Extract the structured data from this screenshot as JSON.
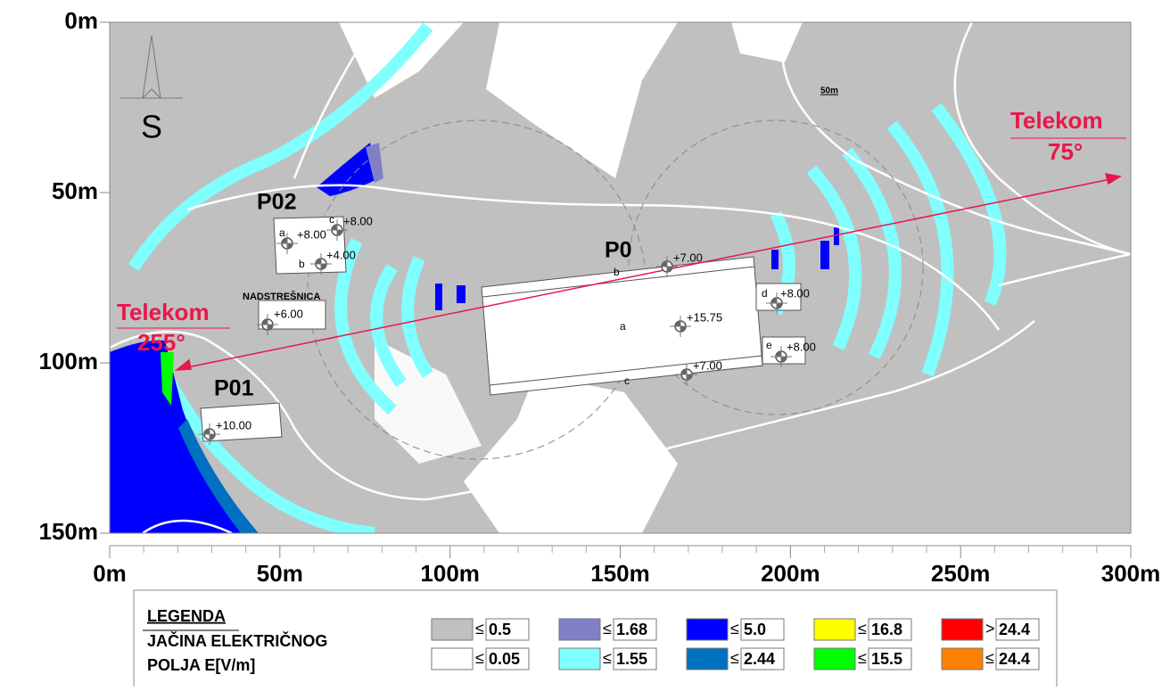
{
  "axes": {
    "x_labels": [
      "0m",
      "50m",
      "100m",
      "150m",
      "200m",
      "250m",
      "300m"
    ],
    "y_labels": [
      "0m",
      "50m",
      "100m",
      "150m"
    ]
  },
  "compass": "S",
  "scale_label": "50m",
  "telekom_left": {
    "name": "Telekom",
    "angle": "255°"
  },
  "telekom_right": {
    "name": "Telekom",
    "angle": "75°"
  },
  "buildings": [
    {
      "name": "P02",
      "points": [
        {
          "letter": "a",
          "elevation": "+8.00"
        },
        {
          "letter": "c",
          "elevation": "+8.00"
        },
        {
          "letter": "b",
          "elevation": "+4.00"
        }
      ]
    },
    {
      "name": "NADSTREŠNICA",
      "points": [
        {
          "elevation": "+6.00"
        }
      ]
    },
    {
      "name": "P01",
      "points": [
        {
          "elevation": "+10.00"
        }
      ]
    },
    {
      "name": "P0",
      "points": [
        {
          "letter": "b",
          "elevation": "+7.00"
        },
        {
          "letter": "a",
          "elevation": "+15.75"
        },
        {
          "letter": "c",
          "elevation": "+7.00"
        },
        {
          "letter": "d",
          "elevation": "+8.00"
        },
        {
          "letter": "e",
          "elevation": "+8.00"
        }
      ]
    }
  ],
  "legend": {
    "title": "LEGENDA",
    "line1": "JAČINA ELEKTRIČNOG",
    "line2": "POLJA E[V/m]",
    "items": [
      {
        "symbol": "≤",
        "value": "0.5",
        "color": "#c0c0c0"
      },
      {
        "symbol": "≤",
        "value": "1.68",
        "color": "#8080c8"
      },
      {
        "symbol": "≤",
        "value": "5.0",
        "color": "#0000ff"
      },
      {
        "symbol": "≤",
        "value": "16.8",
        "color": "#ffff00"
      },
      {
        "symbol": ">",
        "value": "24.4",
        "color": "#ff0000"
      },
      {
        "symbol": "≤",
        "value": "0.05",
        "color": "#ffffff"
      },
      {
        "symbol": "≤",
        "value": "1.55",
        "color": "#80ffff"
      },
      {
        "symbol": "≤",
        "value": "2.44",
        "color": "#0070c0"
      },
      {
        "symbol": "≤",
        "value": "15.5",
        "color": "#00ff00"
      },
      {
        "symbol": "≤",
        "value": "24.4",
        "color": "#ff8000"
      }
    ]
  }
}
